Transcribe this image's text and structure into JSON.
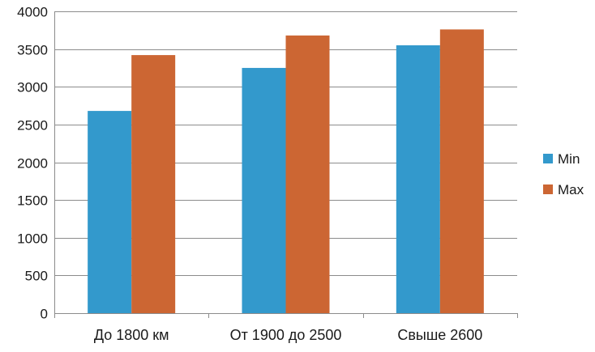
{
  "chart_data": {
    "type": "bar",
    "title": "",
    "xlabel": "",
    "ylabel": "",
    "categories": [
      "До 1800 км",
      "От 1900 до 2500",
      "Свыше 2600"
    ],
    "series": [
      {
        "name": "Min",
        "color": "#3399CC",
        "values": [
          2680,
          3250,
          3550
        ]
      },
      {
        "name": "Max",
        "color": "#CC6633",
        "values": [
          3420,
          3680,
          3760
        ]
      }
    ],
    "ylim": [
      0,
      4000
    ],
    "yticks": [
      0,
      500,
      1000,
      1500,
      2000,
      2500,
      3000,
      3500,
      4000
    ],
    "grid": true,
    "legend": "right"
  }
}
